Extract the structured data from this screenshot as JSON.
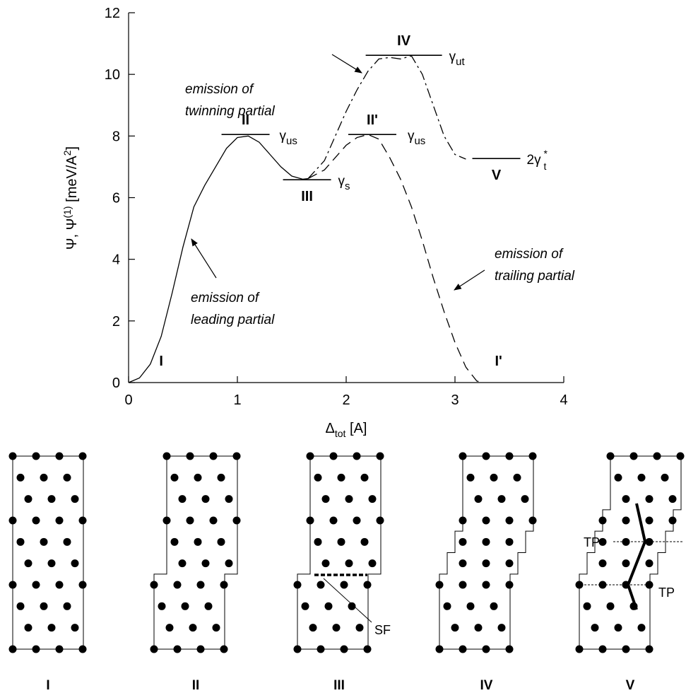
{
  "chart_data": {
    "type": "line",
    "xlabel": {
      "parts": [
        {
          "text": "Δ"
        },
        {
          "text": "tot",
          "sub": true
        },
        {
          "text": " [A]"
        }
      ]
    },
    "ylabel": {
      "parts": [
        {
          "text": "Ψ, Ψ"
        },
        {
          "text": "(1)",
          "sup": true
        },
        {
          "text": " [meV/A"
        },
        {
          "text": "2",
          "sup": true
        },
        {
          "text": "]"
        }
      ]
    },
    "xlim": [
      0,
      4
    ],
    "xticks": [
      0,
      1,
      2,
      3,
      4
    ],
    "ylim": [
      0,
      12
    ],
    "yticks": [
      0,
      2,
      4,
      6,
      8,
      10,
      12
    ],
    "series": [
      {
        "color": "#000000",
        "dash": "solid",
        "x": [
          0,
          0.1,
          0.2,
          0.3,
          0.4,
          0.5,
          0.6,
          0.7,
          0.8,
          0.9,
          1.0,
          1.1,
          1.2,
          1.3,
          1.4,
          1.5,
          1.6,
          1.65
        ],
        "values": [
          0,
          0.15,
          0.6,
          1.5,
          2.9,
          4.4,
          5.7,
          6.4,
          7.0,
          7.6,
          7.95,
          8.0,
          7.8,
          7.4,
          7.0,
          6.7,
          6.6,
          6.62
        ]
      },
      {
        "color": "#000000",
        "dash": "dashed",
        "x": [
          1.65,
          1.8,
          1.9,
          2.0,
          2.1,
          2.2,
          2.3,
          2.4,
          2.5,
          2.6,
          2.7,
          2.8,
          2.9,
          3.0,
          3.1,
          3.2,
          3.25
        ],
        "values": [
          6.62,
          6.9,
          7.3,
          7.7,
          7.95,
          8.05,
          7.9,
          7.3,
          6.6,
          5.7,
          4.6,
          3.4,
          2.3,
          1.3,
          0.5,
          0.05,
          0
        ]
      },
      {
        "color": "#000000",
        "dash": "dashdot",
        "x": [
          1.65,
          1.8,
          1.9,
          2.0,
          2.1,
          2.2,
          2.3,
          2.4,
          2.5,
          2.6,
          2.7,
          2.8,
          2.9,
          3.0,
          3.1
        ],
        "values": [
          6.62,
          7.2,
          8.0,
          8.8,
          9.5,
          10.1,
          10.5,
          10.55,
          10.5,
          10.6,
          10.0,
          9.0,
          8.0,
          7.4,
          7.25
        ]
      }
    ],
    "levels": [
      {
        "label": "II",
        "x": 1.075,
        "y": 8.05,
        "gamma": {
          "text": "γ",
          "sub": "us"
        }
      },
      {
        "label": "III",
        "x": 1.64,
        "y": 6.58,
        "gamma": {
          "text": "γ",
          "sub": "s"
        }
      },
      {
        "label": "IV",
        "x": 2.53,
        "y": 10.62,
        "gamma": {
          "text": "γ",
          "sub": "ut"
        }
      },
      {
        "label": "II'",
        "x": 2.24,
        "y": 8.05,
        "gamma": {
          "text": "γ",
          "sub": "us"
        }
      },
      {
        "label": "V",
        "x": 3.38,
        "y": 7.27,
        "gamma": {
          "text": "2γ",
          "sub": "t",
          "sup": "*"
        }
      }
    ],
    "point_labels": [
      {
        "label": "I",
        "x": 0.3,
        "y": 0.55
      },
      {
        "label": "I'",
        "x": 3.4,
        "y": 0.55
      }
    ],
    "annotations": [
      {
        "lines": [
          "emission of",
          "twinning partial"
        ]
      },
      {
        "lines": [
          "emission of",
          "leading partial"
        ]
      },
      {
        "lines": [
          "emission of",
          "trailing partial"
        ]
      }
    ]
  },
  "diagram": {
    "panels": [
      {
        "label": "I"
      },
      {
        "label": "II"
      },
      {
        "label": "III",
        "note": "SF"
      },
      {
        "label": "IV"
      },
      {
        "label": "V",
        "notes": [
          "TP",
          "TP"
        ]
      }
    ]
  }
}
